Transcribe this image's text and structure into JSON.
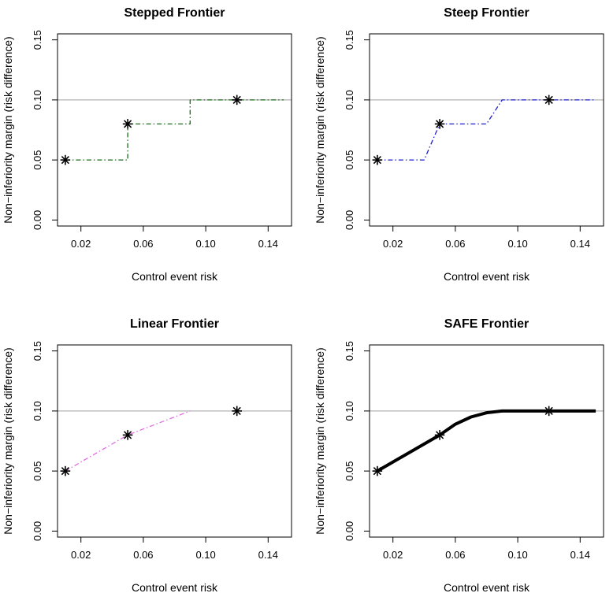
{
  "figure": {
    "xlabel": "Control event risk",
    "ylabel": "Non−inferiority margin (risk difference)",
    "xlim": [
      0.0,
      0.15
    ],
    "ylim": [
      0.0,
      0.15
    ]
  },
  "chart_data": [
    {
      "type": "line",
      "title": "Stepped Frontier",
      "xlabel": "Control event risk",
      "ylabel": "Non−inferiority margin (risk difference)",
      "xlim": [
        0.005,
        0.155
      ],
      "ylim": [
        -0.005,
        0.155
      ],
      "x_ticks": [
        0.02,
        0.06,
        0.1,
        0.14
      ],
      "x_tick_labels": [
        "0.02",
        "0.06",
        "0.10",
        "0.14"
      ],
      "y_ticks": [
        0.0,
        0.05,
        0.1,
        0.15
      ],
      "y_tick_labels": [
        "0.00",
        "0.05",
        "0.10",
        "0.15"
      ],
      "reference_line_y": 0.1,
      "points": {
        "x": [
          0.01,
          0.05,
          0.12
        ],
        "y": [
          0.05,
          0.08,
          0.1
        ]
      },
      "frontier": {
        "x": [
          0.01,
          0.05,
          0.05,
          0.09,
          0.09,
          0.15
        ],
        "y": [
          0.05,
          0.05,
          0.08,
          0.08,
          0.1,
          0.1
        ],
        "color": "#1a6b1a",
        "style": "dashdot",
        "width": 1.3
      }
    },
    {
      "type": "line",
      "title": "Steep Frontier",
      "xlabel": "Control event risk",
      "ylabel": "Non−inferiority margin (risk difference)",
      "xlim": [
        0.005,
        0.155
      ],
      "ylim": [
        -0.005,
        0.155
      ],
      "x_ticks": [
        0.02,
        0.06,
        0.1,
        0.14
      ],
      "x_tick_labels": [
        "0.02",
        "0.06",
        "0.10",
        "0.14"
      ],
      "y_ticks": [
        0.0,
        0.05,
        0.1,
        0.15
      ],
      "y_tick_labels": [
        "0.00",
        "0.05",
        "0.10",
        "0.15"
      ],
      "reference_line_y": 0.1,
      "points": {
        "x": [
          0.01,
          0.05,
          0.12
        ],
        "y": [
          0.05,
          0.08,
          0.1
        ]
      },
      "frontier": {
        "x": [
          0.01,
          0.04,
          0.05,
          0.08,
          0.09,
          0.15
        ],
        "y": [
          0.05,
          0.05,
          0.08,
          0.08,
          0.1,
          0.1
        ],
        "color": "#1f1fcc",
        "style": "dashdot",
        "width": 1.3
      }
    },
    {
      "type": "line",
      "title": "Linear Frontier",
      "xlabel": "Control event risk",
      "ylabel": "Non−inferiority margin (risk difference)",
      "xlim": [
        0.005,
        0.155
      ],
      "ylim": [
        -0.005,
        0.155
      ],
      "x_ticks": [
        0.02,
        0.06,
        0.1,
        0.14
      ],
      "x_tick_labels": [
        "0.02",
        "0.06",
        "0.10",
        "0.14"
      ],
      "y_ticks": [
        0.0,
        0.05,
        0.1,
        0.15
      ],
      "y_tick_labels": [
        "0.00",
        "0.05",
        "0.10",
        "0.15"
      ],
      "reference_line_y": 0.1,
      "points": {
        "x": [
          0.01,
          0.05,
          0.12
        ],
        "y": [
          0.05,
          0.08,
          0.1
        ]
      },
      "frontier": {
        "x": [
          0.01,
          0.05,
          0.09
        ],
        "y": [
          0.05,
          0.08,
          0.1
        ],
        "color": "#e070e0",
        "style": "dashdot",
        "width": 1.3
      }
    },
    {
      "type": "line",
      "title": "SAFE Frontier",
      "xlabel": "Control event risk",
      "ylabel": "Non−inferiority margin (risk difference)",
      "xlim": [
        0.005,
        0.155
      ],
      "ylim": [
        -0.005,
        0.155
      ],
      "x_ticks": [
        0.02,
        0.06,
        0.1,
        0.14
      ],
      "x_tick_labels": [
        "0.02",
        "0.06",
        "0.10",
        "0.14"
      ],
      "y_ticks": [
        0.0,
        0.05,
        0.1,
        0.15
      ],
      "y_tick_labels": [
        "0.00",
        "0.05",
        "0.10",
        "0.15"
      ],
      "reference_line_y": 0.1,
      "points": {
        "x": [
          0.01,
          0.05,
          0.12
        ],
        "y": [
          0.05,
          0.08,
          0.1
        ]
      },
      "frontier": {
        "x": [
          0.01,
          0.05,
          0.06,
          0.07,
          0.08,
          0.09,
          0.1,
          0.15
        ],
        "y": [
          0.05,
          0.08,
          0.089,
          0.095,
          0.0985,
          0.1,
          0.1,
          0.1
        ],
        "color": "#000000",
        "style": "solid",
        "width": 4
      }
    }
  ]
}
